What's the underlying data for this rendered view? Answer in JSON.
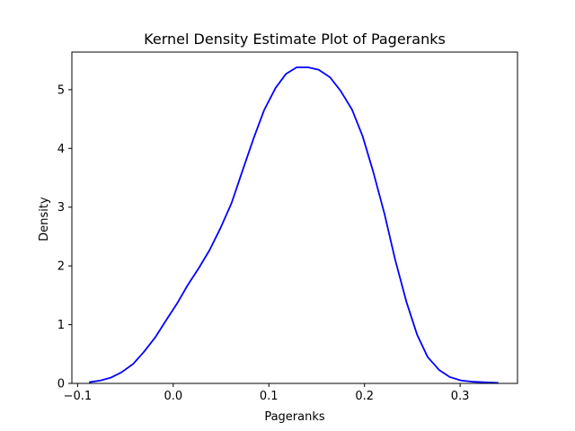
{
  "chart_data": {
    "type": "line",
    "title": "Kernel Density Estimate Plot of Pageranks",
    "xlabel": "Pageranks",
    "ylabel": "Density",
    "xlim": [
      -0.106,
      0.36
    ],
    "ylim": [
      0,
      5.64
    ],
    "xticks": [
      -0.1,
      0.0,
      0.1,
      0.2,
      0.3
    ],
    "xtick_labels": [
      "−0.1",
      "0.0",
      "0.1",
      "0.2",
      "0.3"
    ],
    "yticks": [
      0,
      1,
      2,
      3,
      4,
      5
    ],
    "ytick_labels": [
      "0",
      "1",
      "2",
      "3",
      "4",
      "5"
    ],
    "grid": false,
    "series": [
      {
        "color": "#0000ff",
        "x": [
          -0.088,
          -0.076,
          -0.065,
          -0.054,
          -0.042,
          -0.031,
          -0.019,
          -0.008,
          0.004,
          0.015,
          0.027,
          0.038,
          0.049,
          0.061,
          0.072,
          0.084,
          0.095,
          0.107,
          0.118,
          0.129,
          0.141,
          0.152,
          0.164,
          0.175,
          0.187,
          0.198,
          0.209,
          0.221,
          0.232,
          0.244,
          0.255,
          0.266,
          0.278,
          0.289,
          0.301,
          0.312,
          0.324,
          0.34
        ],
        "y": [
          0.02,
          0.05,
          0.1,
          0.19,
          0.33,
          0.53,
          0.78,
          1.06,
          1.36,
          1.67,
          1.97,
          2.27,
          2.63,
          3.07,
          3.6,
          4.17,
          4.65,
          5.03,
          5.27,
          5.38,
          5.38,
          5.34,
          5.21,
          4.98,
          4.66,
          4.21,
          3.61,
          2.88,
          2.11,
          1.38,
          0.83,
          0.45,
          0.23,
          0.11,
          0.05,
          0.03,
          0.02,
          0.01
        ]
      }
    ]
  }
}
